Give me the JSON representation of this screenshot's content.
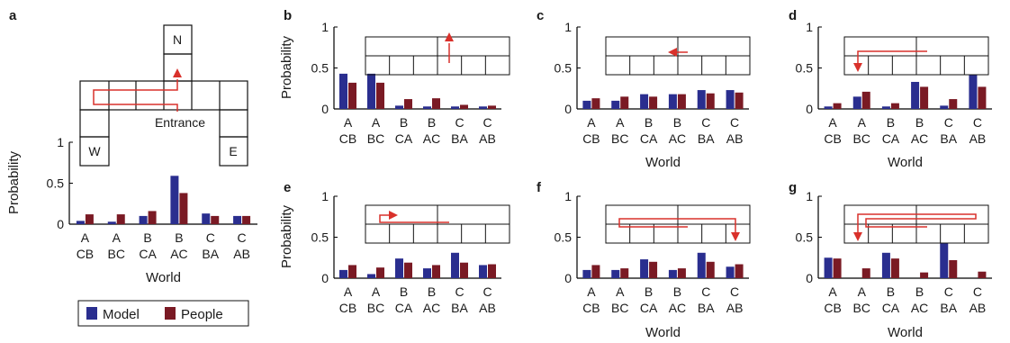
{
  "colors": {
    "model": "#2a2e8f",
    "people": "#7a1a24",
    "path": "#d9312b",
    "axis": "#000000"
  },
  "legend": {
    "model": "Model",
    "people": "People"
  },
  "map_labels": {
    "north": "N",
    "west": "W",
    "east": "E",
    "entrance": "Entrance"
  },
  "chart_data": [
    {
      "panel": "a",
      "type": "bar",
      "xlabel": "World",
      "ylabel": "Probability",
      "ylim": [
        0,
        1
      ],
      "yticks": [
        "0",
        "0.5",
        "1"
      ],
      "categories": [
        [
          "A",
          "CB"
        ],
        [
          "A",
          "BC"
        ],
        [
          "B",
          "CA"
        ],
        [
          "B",
          "AC"
        ],
        [
          "C",
          "BA"
        ],
        [
          "C",
          "AB"
        ]
      ],
      "series": [
        {
          "name": "Model",
          "values": [
            0.04,
            0.03,
            0.1,
            0.59,
            0.13,
            0.1
          ]
        },
        {
          "name": "People",
          "values": [
            0.12,
            0.12,
            0.16,
            0.38,
            0.1,
            0.1
          ]
        }
      ]
    },
    {
      "panel": "b",
      "type": "bar",
      "xlabel": "",
      "ylabel": "Probability",
      "ylim": [
        0,
        1
      ],
      "yticks": [
        "0",
        "0.5",
        "1"
      ],
      "categories": [
        [
          "A",
          "CB"
        ],
        [
          "A",
          "BC"
        ],
        [
          "B",
          "CA"
        ],
        [
          "B",
          "AC"
        ],
        [
          "C",
          "BA"
        ],
        [
          "C",
          "AB"
        ]
      ],
      "series": [
        {
          "name": "Model",
          "values": [
            0.43,
            0.43,
            0.04,
            0.03,
            0.03,
            0.03
          ]
        },
        {
          "name": "People",
          "values": [
            0.32,
            0.32,
            0.12,
            0.13,
            0.05,
            0.04
          ]
        }
      ]
    },
    {
      "panel": "c",
      "type": "bar",
      "xlabel": "World",
      "ylabel": "",
      "ylim": [
        0,
        1
      ],
      "yticks": [
        "0",
        "0.5",
        "1"
      ],
      "categories": [
        [
          "A",
          "CB"
        ],
        [
          "A",
          "BC"
        ],
        [
          "B",
          "CA"
        ],
        [
          "B",
          "AC"
        ],
        [
          "C",
          "BA"
        ],
        [
          "C",
          "AB"
        ]
      ],
      "series": [
        {
          "name": "Model",
          "values": [
            0.1,
            0.1,
            0.18,
            0.18,
            0.23,
            0.23
          ]
        },
        {
          "name": "People",
          "values": [
            0.13,
            0.15,
            0.15,
            0.18,
            0.19,
            0.2
          ]
        }
      ]
    },
    {
      "panel": "d",
      "type": "bar",
      "xlabel": "World",
      "ylabel": "",
      "ylim": [
        0,
        1
      ],
      "yticks": [
        "0",
        "0.5",
        "1"
      ],
      "categories": [
        [
          "A",
          "CB"
        ],
        [
          "A",
          "BC"
        ],
        [
          "B",
          "CA"
        ],
        [
          "B",
          "AC"
        ],
        [
          "C",
          "BA"
        ],
        [
          "C",
          "AB"
        ]
      ],
      "series": [
        {
          "name": "Model",
          "values": [
            0.03,
            0.15,
            0.03,
            0.33,
            0.04,
            0.42
          ]
        },
        {
          "name": "People",
          "values": [
            0.07,
            0.21,
            0.07,
            0.27,
            0.12,
            0.27
          ]
        }
      ]
    },
    {
      "panel": "e",
      "type": "bar",
      "xlabel": "",
      "ylabel": "Probability",
      "ylim": [
        0,
        1
      ],
      "yticks": [
        "0",
        "0.5",
        "1"
      ],
      "categories": [
        [
          "A",
          "CB"
        ],
        [
          "A",
          "BC"
        ],
        [
          "B",
          "CA"
        ],
        [
          "B",
          "AC"
        ],
        [
          "C",
          "BA"
        ],
        [
          "C",
          "AB"
        ]
      ],
      "series": [
        {
          "name": "Model",
          "values": [
            0.1,
            0.05,
            0.24,
            0.12,
            0.31,
            0.16
          ]
        },
        {
          "name": "People",
          "values": [
            0.16,
            0.13,
            0.19,
            0.16,
            0.19,
            0.17
          ]
        }
      ]
    },
    {
      "panel": "f",
      "type": "bar",
      "xlabel": "World",
      "ylabel": "",
      "ylim": [
        0,
        1
      ],
      "yticks": [
        "0",
        "0.5",
        "1"
      ],
      "categories": [
        [
          "A",
          "CB"
        ],
        [
          "A",
          "BC"
        ],
        [
          "B",
          "CA"
        ],
        [
          "B",
          "AC"
        ],
        [
          "C",
          "BA"
        ],
        [
          "C",
          "AB"
        ]
      ],
      "series": [
        {
          "name": "Model",
          "values": [
            0.1,
            0.1,
            0.23,
            0.1,
            0.31,
            0.14
          ]
        },
        {
          "name": "People",
          "values": [
            0.16,
            0.12,
            0.2,
            0.12,
            0.2,
            0.17
          ]
        }
      ]
    },
    {
      "panel": "g",
      "type": "bar",
      "xlabel": "World",
      "ylabel": "",
      "ylim": [
        0,
        1
      ],
      "yticks": [
        "0",
        "0.5",
        "1"
      ],
      "categories": [
        [
          "A",
          "CB"
        ],
        [
          "A",
          "BC"
        ],
        [
          "B",
          "CA"
        ],
        [
          "B",
          "AC"
        ],
        [
          "C",
          "BA"
        ],
        [
          "C",
          "AB"
        ]
      ],
      "series": [
        {
          "name": "Model",
          "values": [
            0.25,
            0.0,
            0.31,
            0.0,
            0.43,
            0.0
          ]
        },
        {
          "name": "People",
          "values": [
            0.24,
            0.12,
            0.24,
            0.07,
            0.22,
            0.08
          ]
        }
      ]
    }
  ]
}
